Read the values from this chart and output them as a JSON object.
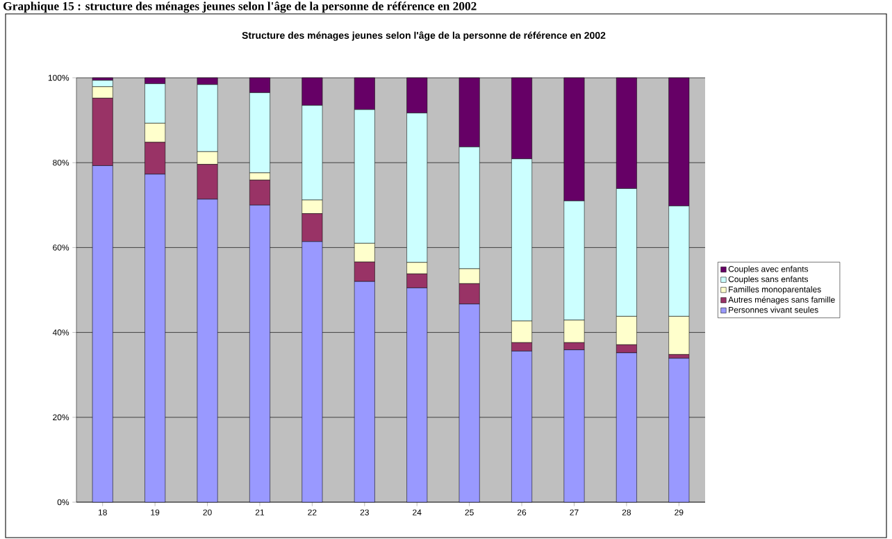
{
  "chart_data": {
    "type": "bar",
    "stacked": true,
    "title": "Graphique 15 : structure des ménages jeunes selon l'âge de la personne de référence en 2002",
    "subtitle": "Structure des ménages jeunes selon l'âge de la personne de référence en 2002",
    "categories": [
      "18",
      "19",
      "20",
      "21",
      "22",
      "23",
      "24",
      "25",
      "26",
      "27",
      "28",
      "29"
    ],
    "series": [
      {
        "name": "Personnes vivant seules",
        "color": "#9999ff",
        "values": [
          79.3,
          77.3,
          71.4,
          70.0,
          61.4,
          52.0,
          50.5,
          46.7,
          35.6,
          35.9,
          35.2,
          33.9
        ]
      },
      {
        "name": "Autres ménages sans famille",
        "color": "#993366",
        "values": [
          15.9,
          7.5,
          8.2,
          5.9,
          6.6,
          4.6,
          3.3,
          4.8,
          2.0,
          1.7,
          1.9,
          0.9
        ]
      },
      {
        "name": "Familles monoparentales",
        "color": "#ffffcc",
        "values": [
          2.7,
          4.5,
          3.0,
          1.7,
          3.2,
          4.4,
          2.7,
          3.5,
          5.1,
          5.3,
          6.7,
          9.0
        ]
      },
      {
        "name": "Couples sans enfants",
        "color": "#ccffff",
        "values": [
          1.5,
          9.3,
          15.8,
          18.9,
          22.3,
          31.5,
          35.2,
          28.7,
          38.2,
          28.1,
          30.1,
          26.0
        ]
      },
      {
        "name": "Couples avec enfants",
        "color": "#660066",
        "values": [
          0.6,
          1.4,
          1.6,
          3.5,
          6.5,
          7.5,
          8.3,
          16.3,
          19.1,
          29.0,
          26.1,
          30.2
        ]
      }
    ],
    "ylim": [
      0,
      100
    ],
    "yticks": [
      {
        "value": 0,
        "label": "0%"
      },
      {
        "value": 20,
        "label": "20%"
      },
      {
        "value": 40,
        "label": "40%"
      },
      {
        "value": 60,
        "label": "60%"
      },
      {
        "value": 80,
        "label": "80%"
      },
      {
        "value": 100,
        "label": "100%"
      }
    ],
    "grid": "y",
    "legend": "right"
  }
}
